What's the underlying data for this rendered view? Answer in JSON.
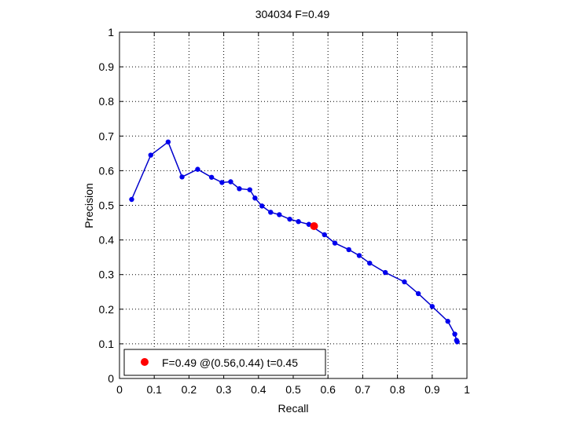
{
  "chart_data": {
    "type": "line",
    "title": "304034 F=0.49",
    "xlabel": "Recall",
    "ylabel": "Precision",
    "xlim": [
      0,
      1
    ],
    "ylim": [
      0,
      1
    ],
    "xticks": [
      "0",
      "0.1",
      "0.2",
      "0.3",
      "0.4",
      "0.5",
      "0.6",
      "0.7",
      "0.8",
      "0.9",
      "1"
    ],
    "yticks": [
      "0",
      "0.1",
      "0.2",
      "0.3",
      "0.4",
      "0.5",
      "0.6",
      "0.7",
      "0.8",
      "0.9",
      "1"
    ],
    "grid": true,
    "legend_position": "bottom-left",
    "series": [
      {
        "color": "#0000cc",
        "marker_color": "#0000ee",
        "x": [
          0.035,
          0.09,
          0.14,
          0.18,
          0.225,
          0.265,
          0.295,
          0.32,
          0.345,
          0.375,
          0.39,
          0.41,
          0.435,
          0.46,
          0.49,
          0.515,
          0.545,
          0.59,
          0.62,
          0.66,
          0.69,
          0.72,
          0.765,
          0.82,
          0.86,
          0.9,
          0.945,
          0.965,
          0.97,
          0.972
        ],
        "y": [
          0.517,
          0.645,
          0.683,
          0.582,
          0.604,
          0.581,
          0.566,
          0.568,
          0.548,
          0.545,
          0.521,
          0.498,
          0.48,
          0.473,
          0.46,
          0.453,
          0.445,
          0.415,
          0.391,
          0.372,
          0.355,
          0.333,
          0.306,
          0.279,
          0.245,
          0.208,
          0.165,
          0.128,
          0.11,
          0.106
        ]
      }
    ],
    "best_point": {
      "x": 0.56,
      "y": 0.44,
      "color": "#ff0000",
      "label": "F=0.49 @(0.56,0.44) t=0.45"
    }
  }
}
